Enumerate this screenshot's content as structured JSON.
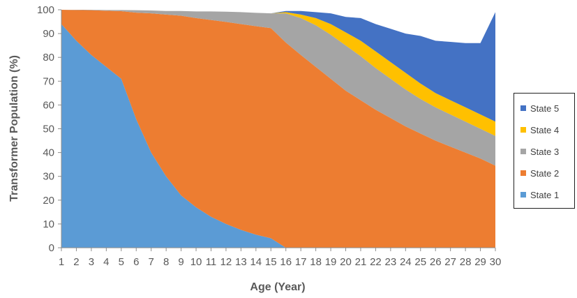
{
  "chart_data": {
    "type": "area",
    "stacked": true,
    "xlabel": "Age (Year)",
    "ylabel": "Transformer Population (%)",
    "ylim": [
      0,
      100
    ],
    "yticks": [
      0,
      10,
      20,
      30,
      40,
      50,
      60,
      70,
      80,
      90,
      100
    ],
    "x": [
      1,
      2,
      3,
      4,
      5,
      6,
      7,
      8,
      9,
      10,
      11,
      12,
      13,
      14,
      15,
      16,
      17,
      18,
      19,
      20,
      21,
      22,
      23,
      24,
      25,
      26,
      27,
      28,
      29,
      30
    ],
    "legend_position": "right",
    "series": [
      {
        "name": "State 1",
        "color": "#5b9bd5",
        "values": [
          94,
          87,
          81,
          76,
          71,
          54,
          40,
          30,
          22,
          17,
          13,
          10,
          7.5,
          5.5,
          4,
          0,
          0,
          0,
          0,
          0,
          0,
          0,
          0,
          0,
          0,
          0,
          0,
          0,
          0,
          0
        ]
      },
      {
        "name": "State 2",
        "color": "#ed7d31",
        "values": [
          6,
          12.9,
          18.8,
          23.6,
          28.4,
          44.8,
          58.5,
          68,
          75.5,
          79.5,
          82.7,
          84.9,
          86.5,
          87.6,
          88.3,
          86.2,
          81,
          76,
          71,
          66,
          62,
          58,
          54.5,
          51,
          48,
          45,
          42.5,
          40,
          37.5,
          34.5
        ]
      },
      {
        "name": "State 3",
        "color": "#a5a5a5",
        "values": [
          0,
          0.1,
          0.2,
          0.3,
          0.5,
          1,
          1.2,
          1.5,
          2,
          2.8,
          3.6,
          4.3,
          5,
          5.6,
          6.2,
          12.3,
          15.5,
          17.5,
          18.5,
          19,
          18.5,
          17.5,
          16.5,
          15.5,
          14.5,
          14,
          13.5,
          13,
          12.5,
          12.5
        ]
      },
      {
        "name": "State 4",
        "color": "#ffc000",
        "values": [
          0,
          0,
          0,
          0,
          0,
          0,
          0,
          0,
          0,
          0,
          0,
          0,
          0,
          0,
          0,
          0.5,
          1.5,
          3,
          4.5,
          5.5,
          6.5,
          7,
          7,
          7,
          6.5,
          6,
          6,
          6,
          6,
          6
        ]
      },
      {
        "name": "State 5",
        "color": "#4472c4",
        "values": [
          0,
          0,
          0,
          0,
          0,
          0,
          0,
          0,
          0,
          0,
          0,
          0,
          0,
          0,
          0,
          0.5,
          1.5,
          2.5,
          4.5,
          6.5,
          9.5,
          11.5,
          14,
          16.5,
          20,
          22,
          24.5,
          27,
          30,
          46
        ]
      }
    ]
  }
}
